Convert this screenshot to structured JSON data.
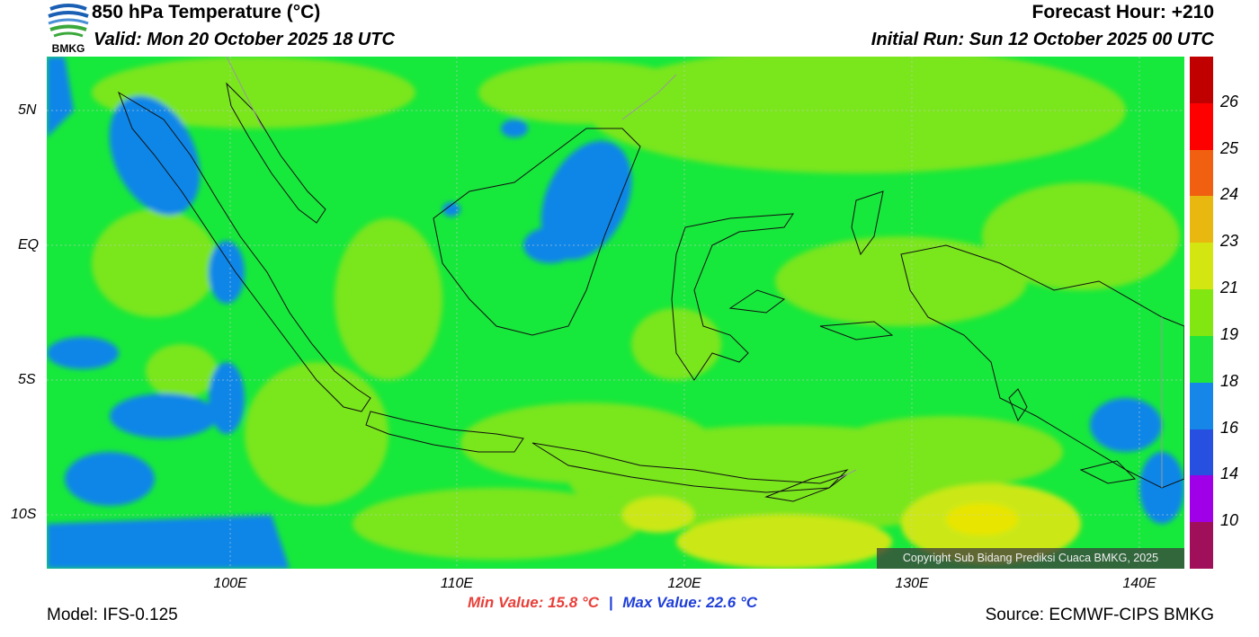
{
  "header": {
    "title": "850 hPa Temperature (°C)",
    "valid": "Valid: Mon 20 October 2025 18 UTC",
    "forecast_hour": "Forecast Hour: +210",
    "initial_run": "Initial Run: Sun 12 October 2025 00 UTC"
  },
  "logo": {
    "text": "BMKG",
    "icon": "bmkg-logo-icon"
  },
  "footer": {
    "model": "Model: IFS-0.125",
    "source": "Source: ECMWF-CIPS BMKG",
    "min_value": "Min Value: 15.8 °C",
    "separator": "|",
    "max_value": "Max Value: 22.6 °C"
  },
  "map": {
    "copyright": "Copyright Sub Bidang Prediksi Cuaca BMKG, 2025",
    "lat_labels": [
      "5N",
      "EQ",
      "5S",
      "10S"
    ],
    "lon_labels": [
      "100E",
      "110E",
      "120E",
      "130E",
      "140E"
    ],
    "colors": {
      "blue": "#0f86e8",
      "green": "#17e83c",
      "lightgreen": "#7ae61c",
      "yellowgreen": "#cbe812",
      "yellow": "#e8e600"
    }
  },
  "colorbar": {
    "labels": [
      "26",
      "25",
      "24",
      "23",
      "21",
      "19",
      "18",
      "16",
      "14",
      "10"
    ],
    "colors": [
      "#c00000",
      "#ff0000",
      "#f06010",
      "#e8b810",
      "#d4e612",
      "#82e610",
      "#1ee63c",
      "#1687e8",
      "#2850e0",
      "#a000e8",
      "#a0105a"
    ]
  }
}
